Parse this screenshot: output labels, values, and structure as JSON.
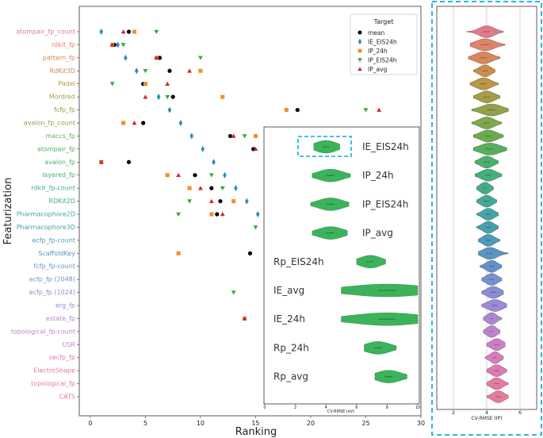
{
  "chart_data": [
    {
      "type": "scatter",
      "title": "",
      "xlabel": "Ranking",
      "ylabel": "Featurization",
      "xlim": [
        -1,
        30
      ],
      "xticks": [
        0,
        5,
        10,
        15,
        20,
        25,
        30
      ],
      "categories": [
        "atompair_fp_count",
        "rdkit_fp",
        "pattern_fp",
        "RdKit3D",
        "Padel",
        "Mordred",
        "fcfp_fp",
        "avalon_fp_count",
        "maccs_fp",
        "atompair_fp",
        "avalon_fp",
        "layered_fp",
        "rdkit_fp-count",
        "RDKit2D",
        "Pharmacophore2D",
        "Pharmacophore3D",
        "ecfp_fp-count",
        "ScaffoldKey",
        "fcfp_fp-count",
        "ecfp_fp (2048)",
        "ecfp_fp (1024)",
        "erg_fp",
        "estate_fp",
        "topological_fp-count",
        "USR",
        "secfp_fp",
        "ElectroShape",
        "topological_fp",
        "CATS"
      ],
      "category_colors": [
        "#e07a8a",
        "#e0836d",
        "#d8875a",
        "#cc8c4c",
        "#b99648",
        "#a59c48",
        "#93a24a",
        "#7fa74c",
        "#6aab52",
        "#58ae5e",
        "#4caf6c",
        "#45ae7a",
        "#44ab88",
        "#44a896",
        "#45a4a4",
        "#48a0ae",
        "#4e9bb7",
        "#5896c0",
        "#6591c8",
        "#7790d0",
        "#8a8dd3",
        "#9b8ad5",
        "#ad86d2",
        "#bd82cd",
        "#cb7fc6",
        "#d57cbd",
        "#dd7bb2",
        "#e27ba6",
        "#e47c9b"
      ],
      "legend": {
        "title": "Target",
        "position": "top-right"
      },
      "series": [
        {
          "name": "mean",
          "marker": "circle",
          "color": "#000000",
          "values": [
            3.5,
            2.2,
            6.3,
            7.2,
            4.8,
            7.5,
            18.8,
            4.8,
            12.7,
            14.8,
            3.5,
            9.5,
            11,
            11.8,
            11.5,
            null,
            null,
            14.5,
            null,
            null,
            null,
            null,
            null,
            null,
            null,
            null,
            null,
            null,
            null
          ]
        },
        {
          "name": "IE_EIS24h",
          "marker": "diamond",
          "color": "#2b8cbe",
          "values": [
            1,
            2.5,
            3.2,
            4.2,
            null,
            6.2,
            7.2,
            8.2,
            9.2,
            10.2,
            11.2,
            12.2,
            13.2,
            14.2,
            15.2,
            null,
            null,
            null,
            null,
            null,
            null,
            null,
            null,
            null,
            null,
            null,
            null,
            null,
            null
          ]
        },
        {
          "name": "IP_24h",
          "marker": "square",
          "color": "#f28e2b",
          "values": [
            4,
            2,
            6,
            10,
            5,
            12,
            17.8,
            3,
            15,
            null,
            1,
            7,
            9,
            13,
            11,
            null,
            null,
            8,
            null,
            null,
            null,
            null,
            14,
            null,
            null,
            null,
            null,
            null,
            null
          ]
        },
        {
          "name": "IP_EIS24h",
          "marker": "triangle-down",
          "color": "#3ca63c",
          "values": [
            6,
            3,
            10,
            5,
            2,
            7,
            25,
            null,
            14,
            null,
            1,
            11,
            12,
            9,
            8,
            15,
            null,
            null,
            null,
            null,
            13,
            null,
            null,
            null,
            null,
            null,
            null,
            null,
            null
          ]
        },
        {
          "name": "IP_avg",
          "marker": "triangle-up",
          "color": "#d62728",
          "values": [
            3,
            2,
            6,
            9,
            7,
            5,
            26.2,
            4,
            13,
            15,
            1,
            8,
            10,
            11,
            12,
            null,
            null,
            null,
            null,
            null,
            null,
            null,
            14,
            null,
            null,
            null,
            null,
            null,
            null
          ]
        }
      ]
    },
    {
      "type": "violin",
      "xlabel": "CV-RMSE (IP)",
      "xlim": [
        1,
        7
      ],
      "xticks": [
        2,
        4,
        6
      ],
      "stats": [
        {
          "median": 4.0,
          "spread": 0.45,
          "min": 2.8,
          "max": 5.0
        },
        {
          "median": 3.9,
          "spread": 0.55,
          "min": 3.0,
          "max": 5.1
        },
        {
          "median": 3.8,
          "spread": 0.5,
          "min": 2.9,
          "max": 4.8
        },
        {
          "median": 3.9,
          "spread": 0.35,
          "min": 3.2,
          "max": 4.5
        },
        {
          "median": 3.8,
          "spread": 0.45,
          "min": 3.0,
          "max": 4.7
        },
        {
          "median": 4.0,
          "spread": 0.45,
          "min": 3.2,
          "max": 4.8
        },
        {
          "median": 4.3,
          "spread": 0.6,
          "min": 3.1,
          "max": 5.3
        },
        {
          "median": 4.0,
          "spread": 0.45,
          "min": 3.1,
          "max": 4.9
        },
        {
          "median": 4.1,
          "spread": 0.5,
          "min": 3.2,
          "max": 5.0
        },
        {
          "median": 4.2,
          "spread": 0.6,
          "min": 3.2,
          "max": 5.2
        },
        {
          "median": 4.0,
          "spread": 0.4,
          "min": 3.3,
          "max": 4.7
        },
        {
          "median": 4.1,
          "spread": 0.45,
          "min": 3.3,
          "max": 4.9
        },
        {
          "median": 3.9,
          "spread": 0.3,
          "min": 3.4,
          "max": 4.4
        },
        {
          "median": 4.0,
          "spread": 0.35,
          "min": 3.4,
          "max": 4.6
        },
        {
          "median": 4.1,
          "spread": 0.35,
          "min": 3.4,
          "max": 4.7
        },
        {
          "median": 4.1,
          "spread": 0.35,
          "min": 3.4,
          "max": 4.7
        },
        {
          "median": 4.1,
          "spread": 0.35,
          "min": 3.5,
          "max": 4.8
        },
        {
          "median": 4.2,
          "spread": 0.45,
          "min": 3.5,
          "max": 5.3
        },
        {
          "median": 4.3,
          "spread": 0.35,
          "min": 3.6,
          "max": 4.9
        },
        {
          "median": 4.3,
          "spread": 0.35,
          "min": 3.7,
          "max": 4.9
        },
        {
          "median": 4.4,
          "spread": 0.4,
          "min": 3.7,
          "max": 5.0
        },
        {
          "median": 4.5,
          "spread": 0.45,
          "min": 3.7,
          "max": 5.2
        },
        {
          "median": 4.3,
          "spread": 0.3,
          "min": 3.8,
          "max": 4.9
        },
        {
          "median": 4.3,
          "spread": 0.3,
          "min": 3.8,
          "max": 4.8
        },
        {
          "median": 4.6,
          "spread": 0.35,
          "min": 4.0,
          "max": 5.1
        },
        {
          "median": 4.5,
          "spread": 0.3,
          "min": 3.9,
          "max": 5.0
        },
        {
          "median": 4.6,
          "spread": 0.35,
          "min": 4.0,
          "max": 5.2
        },
        {
          "median": 4.6,
          "spread": 0.35,
          "min": 4.0,
          "max": 5.3
        },
        {
          "median": 4.7,
          "spread": 0.35,
          "min": 4.0,
          "max": 5.3
        }
      ]
    },
    {
      "type": "violin",
      "xlabel": "CV-RMSE (eV)",
      "xlim": [
        0,
        10
      ],
      "xticks": [
        0,
        2,
        4,
        6,
        8,
        10
      ],
      "color": "#3cb35a",
      "categories": [
        "IE_EIS24h",
        "IP_24h",
        "IP_EIS24h",
        "IP_avg",
        "Rp_EIS24h",
        "IE_avg",
        "IE_24h",
        "Rp_24h",
        "Rp_avg"
      ],
      "highlighted": "IE_EIS24h",
      "stats": [
        {
          "median": 4.0,
          "spread": 0.7,
          "min": 3.2,
          "max": 4.9
        },
        {
          "median": 4.3,
          "spread": 0.8,
          "min": 3.1,
          "max": 5.6
        },
        {
          "median": 4.3,
          "spread": 0.8,
          "min": 3.0,
          "max": 5.5
        },
        {
          "median": 4.3,
          "spread": 0.8,
          "min": 3.1,
          "max": 5.4
        },
        {
          "median": 6.9,
          "spread": 0.7,
          "min": 6.0,
          "max": 7.9
        },
        {
          "median": 8.0,
          "spread": 2.0,
          "min": 5.0,
          "max": 10.0
        },
        {
          "median": 8.0,
          "spread": 1.8,
          "min": 5.0,
          "max": 10.0
        },
        {
          "median": 7.4,
          "spread": 0.8,
          "min": 6.5,
          "max": 8.6
        },
        {
          "median": 8.1,
          "spread": 0.8,
          "min": 7.2,
          "max": 9.3
        }
      ]
    }
  ]
}
